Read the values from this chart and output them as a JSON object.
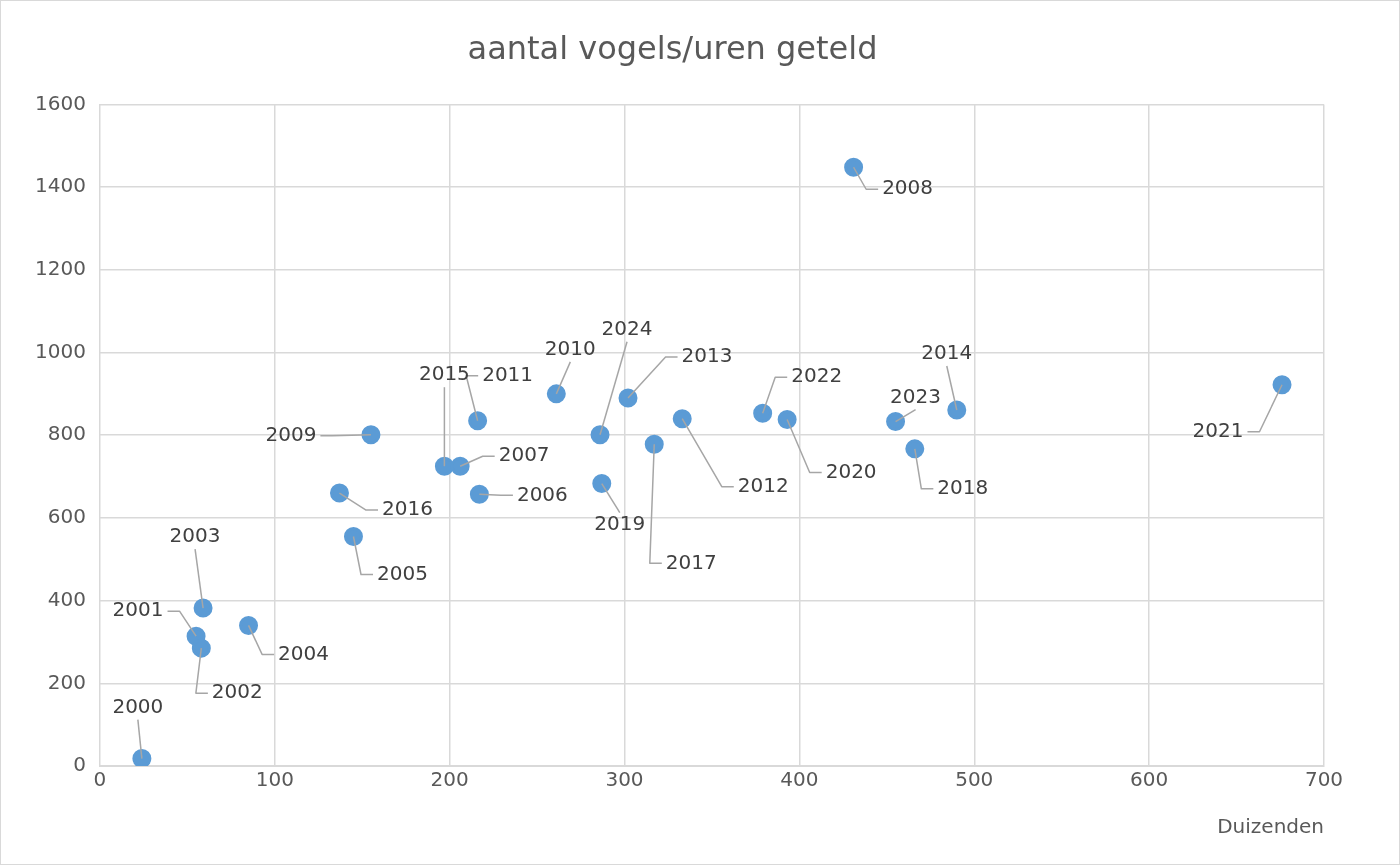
{
  "chart_data": {
    "type": "scatter",
    "title": "aantal vogels/uren geteld",
    "xlabel": "Duizenden",
    "x": [
      24,
      55,
      58,
      59,
      85,
      145,
      217,
      206,
      431,
      155,
      261,
      216,
      333,
      302,
      490,
      197,
      137,
      317,
      466,
      287,
      393,
      676,
      379,
      455,
      286
    ],
    "series": [
      {
        "color": "#5b9bd5",
        "values": [
          18,
          314,
          285,
          382,
          340,
          555,
          657,
          725,
          1448,
          801,
          900,
          835,
          840,
          890,
          861,
          725,
          660,
          778,
          767,
          683,
          838,
          922,
          853,
          833,
          801
        ]
      }
    ],
    "value_labels": [
      "2000",
      "2001",
      "2002",
      "2003",
      "2004",
      "2005",
      "2006",
      "2007",
      "2008",
      "2009",
      "2010",
      "2011",
      "2012",
      "2013",
      "2014",
      "2015",
      "2016",
      "2017",
      "2018",
      "2019",
      "2020",
      "2021",
      "2022",
      "2023",
      "2024"
    ],
    "xlim": [
      0,
      700
    ],
    "xticks": [
      0,
      100,
      200,
      300,
      400,
      500,
      600,
      700
    ],
    "ylim": [
      0,
      1600
    ],
    "yticks": [
      0,
      200,
      400,
      600,
      800,
      1000,
      1200,
      1400,
      1600
    ],
    "grid": true,
    "legend": false,
    "marker": "circle"
  }
}
